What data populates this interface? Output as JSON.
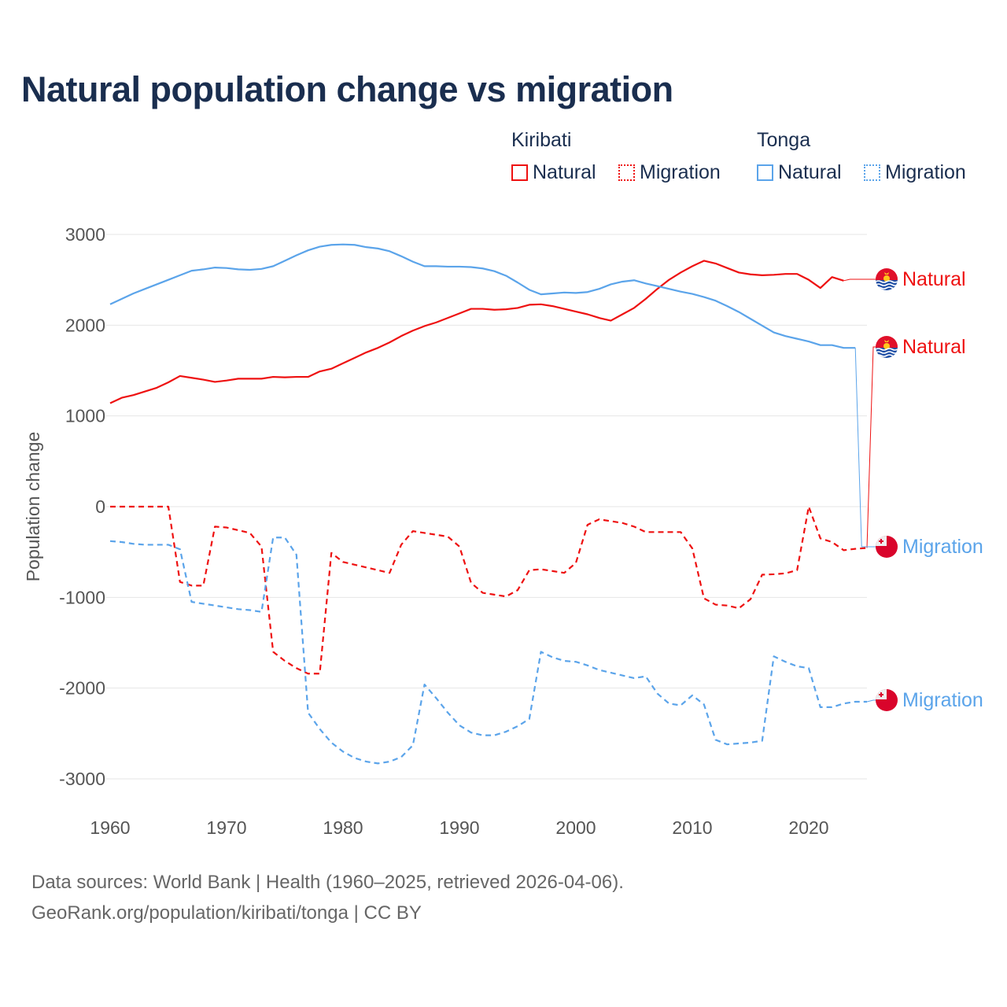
{
  "title": "Natural population change vs migration",
  "legend": {
    "groups": [
      {
        "name": "Kiribati",
        "items": [
          "Natural",
          "Migration"
        ]
      },
      {
        "name": "Tonga",
        "items": [
          "Natural",
          "Migration"
        ]
      }
    ]
  },
  "footer": {
    "line1": "Data sources: World Bank | Health (1960–2025, retrieved 2026-04-06).",
    "line2": "GeoRank.org/population/kiribati/tonga | CC BY"
  },
  "chart_data": {
    "type": "line",
    "title": "Natural population change vs migration",
    "xlabel": "",
    "ylabel": "Population change",
    "xlim": [
      1960,
      2025
    ],
    "ylim": [
      -3000,
      3000
    ],
    "x_ticks": [
      "1960",
      "1970",
      "1980",
      "1990",
      "2000",
      "2010",
      "2020"
    ],
    "y_ticks": [
      "3000",
      "2000",
      "1000",
      "0",
      "-1000",
      "-2000",
      "-3000"
    ],
    "grid": true,
    "colors": {
      "kiribati": "#ee1111",
      "tonga": "#5ba4ea"
    },
    "series": [
      {
        "name": "Natural",
        "country": "Kiribati",
        "style": "solid",
        "color": "#ee1111",
        "start": 1960,
        "values": [
          1140,
          1200,
          1230,
          1270,
          1310,
          1370,
          1440,
          1420,
          1400,
          1375,
          1390,
          1410,
          1410,
          1410,
          1430,
          1425,
          1430,
          1430,
          1490,
          1520,
          1580,
          1640,
          1700,
          1750,
          1810,
          1880,
          1940,
          1990,
          2030,
          2080,
          2130,
          2180,
          2180,
          2170,
          2175,
          2190,
          2225,
          2230,
          2210,
          2180,
          2150,
          2120,
          2080,
          2050,
          2120,
          2190,
          2290,
          2400,
          2500,
          2580,
          2650,
          2710,
          2680,
          2630,
          2580,
          2560,
          2550,
          2555,
          2565,
          2565,
          2500,
          2410,
          2530,
          2490
        ]
      },
      {
        "name": "Migration",
        "country": "Kiribati",
        "style": "dashed",
        "color": "#ee1111",
        "start": 1960,
        "values": [
          0,
          0,
          0,
          0,
          0,
          0,
          -830,
          -870,
          -870,
          -220,
          -230,
          -260,
          -290,
          -440,
          -1600,
          -1700,
          -1780,
          -1840,
          -1840,
          -510,
          -610,
          -640,
          -670,
          -700,
          -730,
          -420,
          -270,
          -290,
          -310,
          -330,
          -440,
          -840,
          -950,
          -970,
          -990,
          -920,
          -700,
          -690,
          -710,
          -730,
          -620,
          -200,
          -140,
          -160,
          -180,
          -220,
          -280,
          -280,
          -280,
          -280,
          -460,
          -1010,
          -1080,
          -1090,
          -1120,
          -1020,
          -750,
          -745,
          -735,
          -700,
          0,
          -350,
          -390,
          -480,
          -465,
          -455
        ]
      },
      {
        "name": "Natural",
        "country": "Tonga",
        "style": "solid",
        "color": "#5ba4ea",
        "start": 1960,
        "values": [
          2230,
          2290,
          2350,
          2400,
          2450,
          2500,
          2550,
          2600,
          2615,
          2635,
          2630,
          2615,
          2610,
          2620,
          2650,
          2710,
          2770,
          2825,
          2865,
          2885,
          2890,
          2885,
          2860,
          2845,
          2815,
          2760,
          2700,
          2650,
          2650,
          2645,
          2645,
          2640,
          2625,
          2595,
          2545,
          2470,
          2390,
          2340,
          2350,
          2360,
          2355,
          2365,
          2400,
          2450,
          2480,
          2495,
          2460,
          2430,
          2400,
          2370,
          2345,
          2310,
          2270,
          2210,
          2145,
          2070,
          1995,
          1920,
          1880,
          1850,
          1820,
          1780,
          1780,
          1750,
          1750
        ]
      },
      {
        "name": "Migration",
        "country": "Tonga",
        "style": "dashed",
        "color": "#5ba4ea",
        "start": 1960,
        "values": [
          -380,
          -390,
          -410,
          -420,
          -420,
          -420,
          -470,
          -1050,
          -1070,
          -1090,
          -1110,
          -1130,
          -1140,
          -1160,
          -340,
          -340,
          -530,
          -2270,
          -2450,
          -2600,
          -2700,
          -2770,
          -2810,
          -2830,
          -2810,
          -2760,
          -2630,
          -1960,
          -2110,
          -2270,
          -2410,
          -2490,
          -2520,
          -2520,
          -2480,
          -2420,
          -2340,
          -1600,
          -1660,
          -1700,
          -1710,
          -1750,
          -1800,
          -1830,
          -1860,
          -1890,
          -1870,
          -2060,
          -2170,
          -2190,
          -2080,
          -2180,
          -2570,
          -2620,
          -2610,
          -2600,
          -2580,
          -1650,
          -1710,
          -1760,
          -1780,
          -2210,
          -2210,
          -2170,
          -2150,
          -2150
        ]
      }
    ],
    "end_labels": [
      "Natural",
      "Natural",
      "Migration",
      "Migration"
    ]
  }
}
